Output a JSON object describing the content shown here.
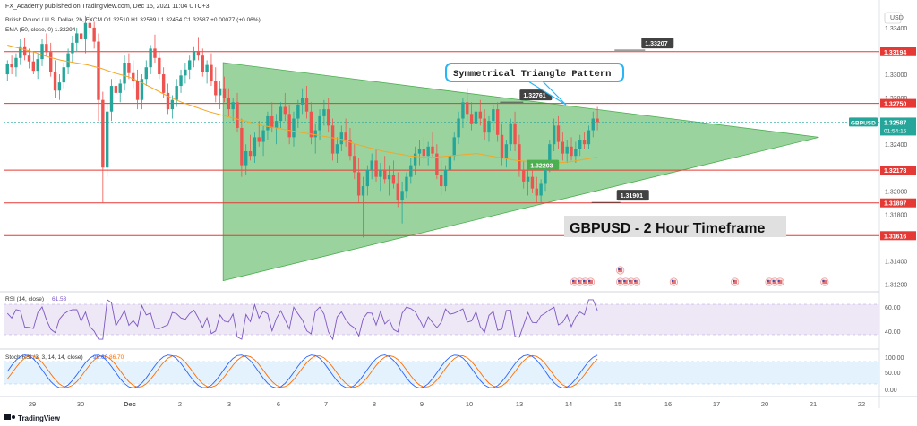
{
  "header": {
    "publisher": "FX_Academy published on TradingView.com, Dec 15, 2021 11:04 UTC+3",
    "ohlc_line": "British Pound / U.S. Dollar, 2h, FXCM  O1.32510  H1.32589  L1.32454  C1.32587  +0.00077 (+0.06%)",
    "ema_line": "EMA (50, close, 0)  1.32294"
  },
  "currency": "USD",
  "symbol_tag": {
    "name": "GBPUSD",
    "price": "1.32587",
    "countdown": "01:54:15"
  },
  "annotations": {
    "pattern_label": "Symmetrical Triangle Pattern",
    "timeframe_label": "GBPUSD - 2  Hour Timeframe",
    "ema_tag": "1.32203"
  },
  "colors": {
    "up": "#26a69a",
    "down": "#ef5350",
    "ema": "#f5a623",
    "triangle": "#66bb6a",
    "level_line": "#e53935",
    "rsi": "#7e57c2",
    "stoch_k": "#2962ff",
    "stoch_d": "#ff6d00",
    "callout": "#424242"
  },
  "chart_data": {
    "type": "candlestick",
    "ylim": [
      1.3115,
      1.3353
    ],
    "y_ticks": [
      "1.33400",
      "1.33000",
      "1.32800",
      "1.32400",
      "1.32000",
      "1.31800",
      "1.31400",
      "1.31200"
    ],
    "x_ticks": [
      "29",
      "30",
      "Dec",
      "2",
      "3",
      "6",
      "7",
      "8",
      "9",
      "10",
      "13",
      "14",
      "15",
      "16",
      "17",
      "20",
      "21",
      "22"
    ],
    "levels": [
      {
        "price": 1.33194,
        "label": "1.33194"
      },
      {
        "price": 1.3275,
        "label": "1.32750"
      },
      {
        "price": 1.32178,
        "label": "1.32178"
      },
      {
        "price": 1.31897,
        "label": "1.31897"
      },
      {
        "price": 1.31616,
        "label": "1.31616"
      }
    ],
    "callouts": [
      {
        "label": "1.33207",
        "price": 1.33207
      },
      {
        "label": "1.32761",
        "price": 1.32761
      },
      {
        "label": "1.31901",
        "price": 1.31901
      }
    ],
    "triangle": {
      "apex": {
        "time": 21.15,
        "price": 1.3246
      },
      "upper_start": {
        "time": 5.55,
        "price": 1.331
      },
      "lower_start": {
        "time": 5.55,
        "price": 1.3123
      }
    },
    "candles_ohlc": [
      [
        1.33,
        1.3312,
        1.3294,
        1.3309
      ],
      [
        1.3309,
        1.3316,
        1.33,
        1.3306
      ],
      [
        1.3306,
        1.3318,
        1.3298,
        1.3314
      ],
      [
        1.3314,
        1.333,
        1.3308,
        1.3324
      ],
      [
        1.3324,
        1.3331,
        1.3312,
        1.3316
      ],
      [
        1.3316,
        1.3322,
        1.3305,
        1.3311
      ],
      [
        1.3311,
        1.332,
        1.33,
        1.3303
      ],
      [
        1.3303,
        1.3318,
        1.3296,
        1.3313
      ],
      [
        1.3313,
        1.333,
        1.3307,
        1.3326
      ],
      [
        1.3326,
        1.3335,
        1.3315,
        1.3319
      ],
      [
        1.3319,
        1.3327,
        1.3298,
        1.3302
      ],
      [
        1.3302,
        1.3312,
        1.328,
        1.3286
      ],
      [
        1.3286,
        1.33,
        1.3278,
        1.3293
      ],
      [
        1.3293,
        1.331,
        1.3288,
        1.3306
      ],
      [
        1.3306,
        1.3322,
        1.33,
        1.3318
      ],
      [
        1.3318,
        1.3333,
        1.331,
        1.3327
      ],
      [
        1.3327,
        1.334,
        1.332,
        1.3335
      ],
      [
        1.3335,
        1.3343,
        1.3326,
        1.333
      ],
      [
        1.333,
        1.335,
        1.3318,
        1.3344
      ],
      [
        1.3344,
        1.3352,
        1.3334,
        1.334
      ],
      [
        1.334,
        1.3345,
        1.3322,
        1.3328
      ],
      [
        1.3328,
        1.3335,
        1.326,
        1.3278
      ],
      [
        1.3278,
        1.3285,
        1.319,
        1.322
      ],
      [
        1.322,
        1.3275,
        1.3212,
        1.3268
      ],
      [
        1.3268,
        1.3296,
        1.326,
        1.329
      ],
      [
        1.329,
        1.3302,
        1.328,
        1.3284
      ],
      [
        1.3284,
        1.3296,
        1.3276,
        1.3292
      ],
      [
        1.3292,
        1.3316,
        1.3286,
        1.331
      ],
      [
        1.331,
        1.3318,
        1.3296,
        1.3301
      ],
      [
        1.3301,
        1.3312,
        1.3288,
        1.3294
      ],
      [
        1.3294,
        1.3304,
        1.327,
        1.3278
      ],
      [
        1.3278,
        1.33,
        1.327,
        1.3296
      ],
      [
        1.3296,
        1.3312,
        1.329,
        1.3306
      ],
      [
        1.3306,
        1.3325,
        1.33,
        1.3322
      ],
      [
        1.3322,
        1.3334,
        1.331,
        1.3314
      ],
      [
        1.3314,
        1.332,
        1.3296,
        1.33
      ],
      [
        1.33,
        1.3306,
        1.328,
        1.3284
      ],
      [
        1.3284,
        1.3292,
        1.3266,
        1.327
      ],
      [
        1.327,
        1.3282,
        1.3262,
        1.3278
      ],
      [
        1.3278,
        1.3296,
        1.3272,
        1.329
      ],
      [
        1.329,
        1.3304,
        1.3284,
        1.3299
      ],
      [
        1.3299,
        1.331,
        1.3292,
        1.3304
      ],
      [
        1.3304,
        1.3316,
        1.3296,
        1.3312
      ],
      [
        1.3312,
        1.3324,
        1.3306,
        1.332
      ],
      [
        1.332,
        1.3332,
        1.3312,
        1.3316
      ],
      [
        1.3316,
        1.3322,
        1.3298,
        1.3302
      ],
      [
        1.3302,
        1.3312,
        1.3292,
        1.3308
      ],
      [
        1.3308,
        1.3318,
        1.329,
        1.3294
      ],
      [
        1.3294,
        1.3306,
        1.3276,
        1.3282
      ],
      [
        1.3282,
        1.3294,
        1.327,
        1.3288
      ],
      [
        1.3288,
        1.3298,
        1.3276,
        1.328
      ],
      [
        1.328,
        1.3288,
        1.3264,
        1.327
      ],
      [
        1.327,
        1.328,
        1.326,
        1.3276
      ],
      [
        1.3276,
        1.3284,
        1.325,
        1.3254
      ],
      [
        1.3254,
        1.3262,
        1.3212,
        1.3222
      ],
      [
        1.3222,
        1.324,
        1.3214,
        1.3234
      ],
      [
        1.3234,
        1.3248,
        1.3226,
        1.323
      ],
      [
        1.323,
        1.325,
        1.3224,
        1.3246
      ],
      [
        1.3246,
        1.326,
        1.3238,
        1.3242
      ],
      [
        1.3242,
        1.3256,
        1.323,
        1.3252
      ],
      [
        1.3252,
        1.3268,
        1.3244,
        1.3264
      ],
      [
        1.3264,
        1.3276,
        1.325,
        1.3254
      ],
      [
        1.3254,
        1.3266,
        1.324,
        1.326
      ],
      [
        1.326,
        1.3276,
        1.3254,
        1.3272
      ],
      [
        1.3272,
        1.3284,
        1.326,
        1.3266
      ],
      [
        1.3266,
        1.3274,
        1.324,
        1.3246
      ],
      [
        1.3246,
        1.3268,
        1.3238,
        1.3262
      ],
      [
        1.3262,
        1.3278,
        1.3254,
        1.3274
      ],
      [
        1.3274,
        1.3288,
        1.3266,
        1.328
      ],
      [
        1.328,
        1.329,
        1.3262,
        1.3268
      ],
      [
        1.3268,
        1.3276,
        1.324,
        1.3246
      ],
      [
        1.3246,
        1.3258,
        1.3232,
        1.3252
      ],
      [
        1.3252,
        1.327,
        1.3244,
        1.3264
      ],
      [
        1.3264,
        1.3278,
        1.3256,
        1.327
      ],
      [
        1.327,
        1.328,
        1.325,
        1.3256
      ],
      [
        1.3256,
        1.3262,
        1.3226,
        1.3232
      ],
      [
        1.3232,
        1.3246,
        1.3224,
        1.324
      ],
      [
        1.324,
        1.3256,
        1.3234,
        1.325
      ],
      [
        1.325,
        1.3262,
        1.3238,
        1.3244
      ],
      [
        1.3244,
        1.3254,
        1.3226,
        1.323
      ],
      [
        1.323,
        1.324,
        1.321,
        1.3216
      ],
      [
        1.3216,
        1.3228,
        1.319,
        1.3196
      ],
      [
        1.3196,
        1.3212,
        1.316,
        1.3204
      ],
      [
        1.3204,
        1.3222,
        1.3196,
        1.3218
      ],
      [
        1.3218,
        1.3232,
        1.321,
        1.3226
      ],
      [
        1.3226,
        1.3236,
        1.3208,
        1.3212
      ],
      [
        1.3212,
        1.3224,
        1.32,
        1.3218
      ],
      [
        1.3218,
        1.323,
        1.3206,
        1.321
      ],
      [
        1.321,
        1.3222,
        1.3196,
        1.3214
      ],
      [
        1.3214,
        1.3226,
        1.3202,
        1.3206
      ],
      [
        1.3206,
        1.3216,
        1.3186,
        1.3192
      ],
      [
        1.3192,
        1.3208,
        1.3172,
        1.32
      ],
      [
        1.32,
        1.3216,
        1.3194,
        1.3212
      ],
      [
        1.3212,
        1.3228,
        1.3206,
        1.3222
      ],
      [
        1.3222,
        1.3238,
        1.3214,
        1.3232
      ],
      [
        1.3232,
        1.3244,
        1.3222,
        1.3236
      ],
      [
        1.3236,
        1.3246,
        1.3226,
        1.323
      ],
      [
        1.323,
        1.3242,
        1.3222,
        1.3238
      ],
      [
        1.3238,
        1.325,
        1.3228,
        1.3232
      ],
      [
        1.3232,
        1.324,
        1.321,
        1.3214
      ],
      [
        1.3214,
        1.3226,
        1.3196,
        1.3204
      ],
      [
        1.3204,
        1.3222,
        1.32,
        1.3218
      ],
      [
        1.3218,
        1.3236,
        1.3212,
        1.323
      ],
      [
        1.323,
        1.325,
        1.3226,
        1.3246
      ],
      [
        1.3246,
        1.3268,
        1.324,
        1.3262
      ],
      [
        1.3262,
        1.328,
        1.3254,
        1.3276
      ],
      [
        1.3276,
        1.3288,
        1.326,
        1.3266
      ],
      [
        1.3266,
        1.3276,
        1.3252,
        1.3258
      ],
      [
        1.3258,
        1.3272,
        1.325,
        1.3268
      ],
      [
        1.3268,
        1.3278,
        1.3256,
        1.3262
      ],
      [
        1.3262,
        1.327,
        1.3244,
        1.325
      ],
      [
        1.325,
        1.3264,
        1.3242,
        1.326
      ],
      [
        1.326,
        1.3274,
        1.3252,
        1.327
      ],
      [
        1.327,
        1.3276,
        1.3242,
        1.3248
      ],
      [
        1.3248,
        1.3258,
        1.3222,
        1.3228
      ],
      [
        1.3228,
        1.3244,
        1.322,
        1.324
      ],
      [
        1.324,
        1.3262,
        1.3234,
        1.3258
      ],
      [
        1.3258,
        1.3268,
        1.3234,
        1.324
      ],
      [
        1.324,
        1.3248,
        1.3212,
        1.3218
      ],
      [
        1.3218,
        1.3226,
        1.3202,
        1.3208
      ],
      [
        1.3208,
        1.3218,
        1.3196,
        1.3212
      ],
      [
        1.3212,
        1.3224,
        1.3198,
        1.3202
      ],
      [
        1.3202,
        1.3212,
        1.319,
        1.3196
      ],
      [
        1.3196,
        1.321,
        1.319,
        1.3206
      ],
      [
        1.3206,
        1.3226,
        1.32,
        1.3222
      ],
      [
        1.3222,
        1.3244,
        1.3216,
        1.324
      ],
      [
        1.324,
        1.3262,
        1.3234,
        1.3256
      ],
      [
        1.3256,
        1.3264,
        1.3236,
        1.3242
      ],
      [
        1.3242,
        1.325,
        1.3226,
        1.3232
      ],
      [
        1.3232,
        1.3244,
        1.3224,
        1.3238
      ],
      [
        1.3238,
        1.3246,
        1.3226,
        1.323
      ],
      [
        1.323,
        1.3242,
        1.3224,
        1.3236
      ],
      [
        1.3236,
        1.3248,
        1.323,
        1.3244
      ],
      [
        1.3244,
        1.325,
        1.3236,
        1.324
      ],
      [
        1.324,
        1.3256,
        1.3236,
        1.3252
      ],
      [
        1.3252,
        1.3268,
        1.3246,
        1.3262
      ],
      [
        1.3262,
        1.3272,
        1.3252,
        1.3259
      ]
    ],
    "ema_50": [
      1.3325,
      1.3322,
      1.3319,
      1.3315,
      1.3312,
      1.331,
      1.3308,
      1.3305,
      1.3301,
      1.3298,
      1.3293,
      1.3287,
      1.3281,
      1.3276,
      1.3272,
      1.3268,
      1.3265,
      1.3262,
      1.3259,
      1.3256,
      1.3254,
      1.3252,
      1.325,
      1.3248,
      1.3246,
      1.3244,
      1.324,
      1.3237,
      1.3234,
      1.3232,
      1.323,
      1.3229,
      1.3229,
      1.323,
      1.3231,
      1.3232,
      1.323,
      1.3228,
      1.3226,
      1.3225,
      1.3224,
      1.3224,
      1.3225,
      1.3227,
      1.3229
    ],
    "rsi": {
      "label": "RSI (14, close)",
      "value": "61.53",
      "ticks": [
        "60.00",
        "40.00"
      ]
    },
    "stoch": {
      "label": "Stoch RSI (3, 3, 14, 14, close)",
      "k": "96.66",
      "d": "86.70",
      "ticks": [
        "100.00",
        "50.00",
        "0.00"
      ]
    },
    "event_icons": [
      {
        "time": 14.75,
        "count": 4
      },
      {
        "time": 15.95,
        "count": 4
      },
      {
        "time": 15.95,
        "count": 1,
        "row": 2
      },
      {
        "time": 17.35,
        "count": 1
      },
      {
        "time": 18.95,
        "count": 1
      },
      {
        "time": 19.85,
        "count": 3
      },
      {
        "time": 21.3,
        "count": 1
      }
    ],
    "logo_text": "TradingView"
  }
}
